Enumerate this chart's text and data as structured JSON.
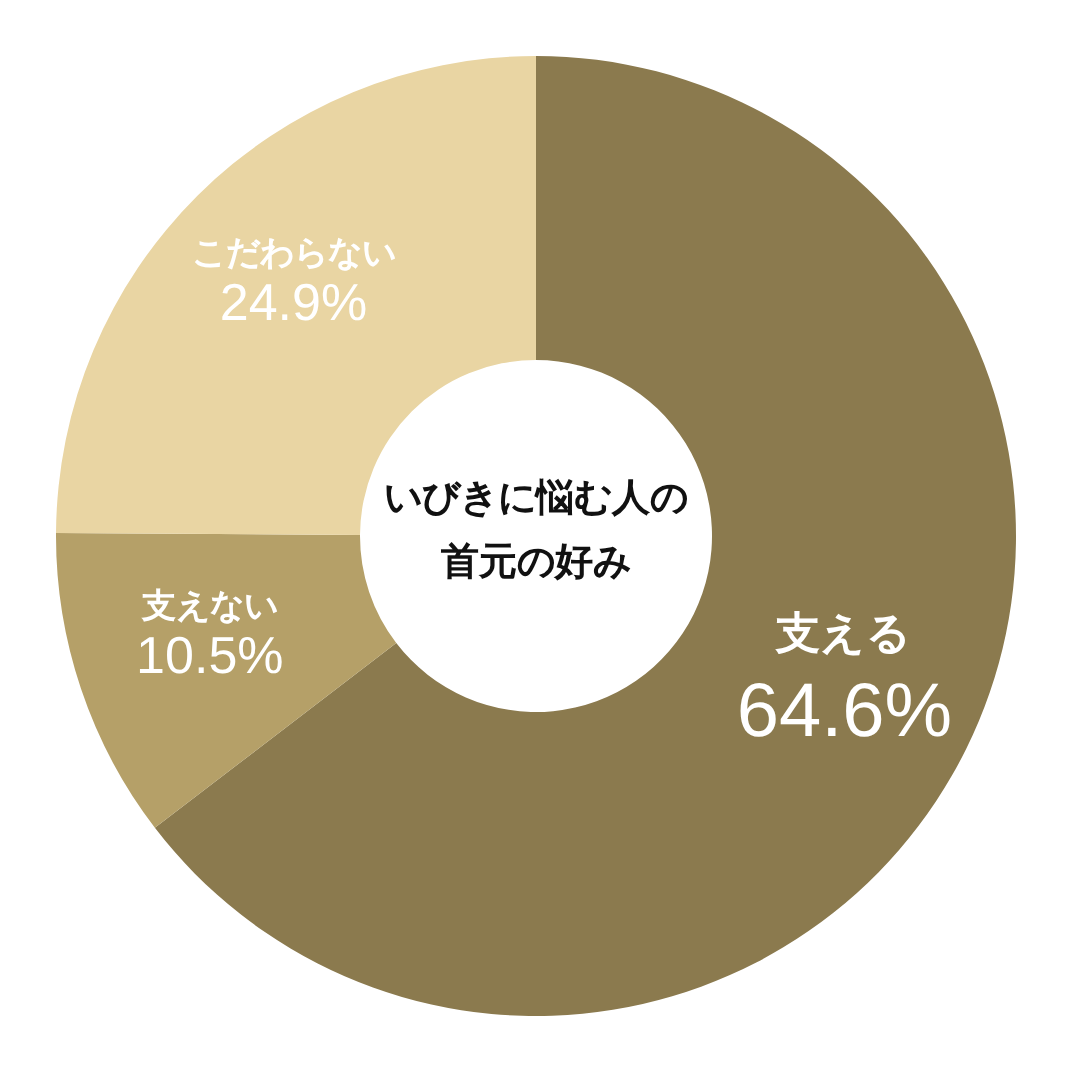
{
  "chart_data": {
    "type": "donut",
    "title": "いびきに悩む人の首元の好み",
    "categories": [
      "支える",
      "支えない",
      "こだわらない"
    ],
    "values": [
      64.6,
      10.5,
      24.9
    ],
    "colors": [
      "#8b7a4e",
      "#b5a068",
      "#e9d5a3"
    ],
    "value_labels": [
      "64.6%",
      "10.5%",
      "24.9%"
    ]
  }
}
